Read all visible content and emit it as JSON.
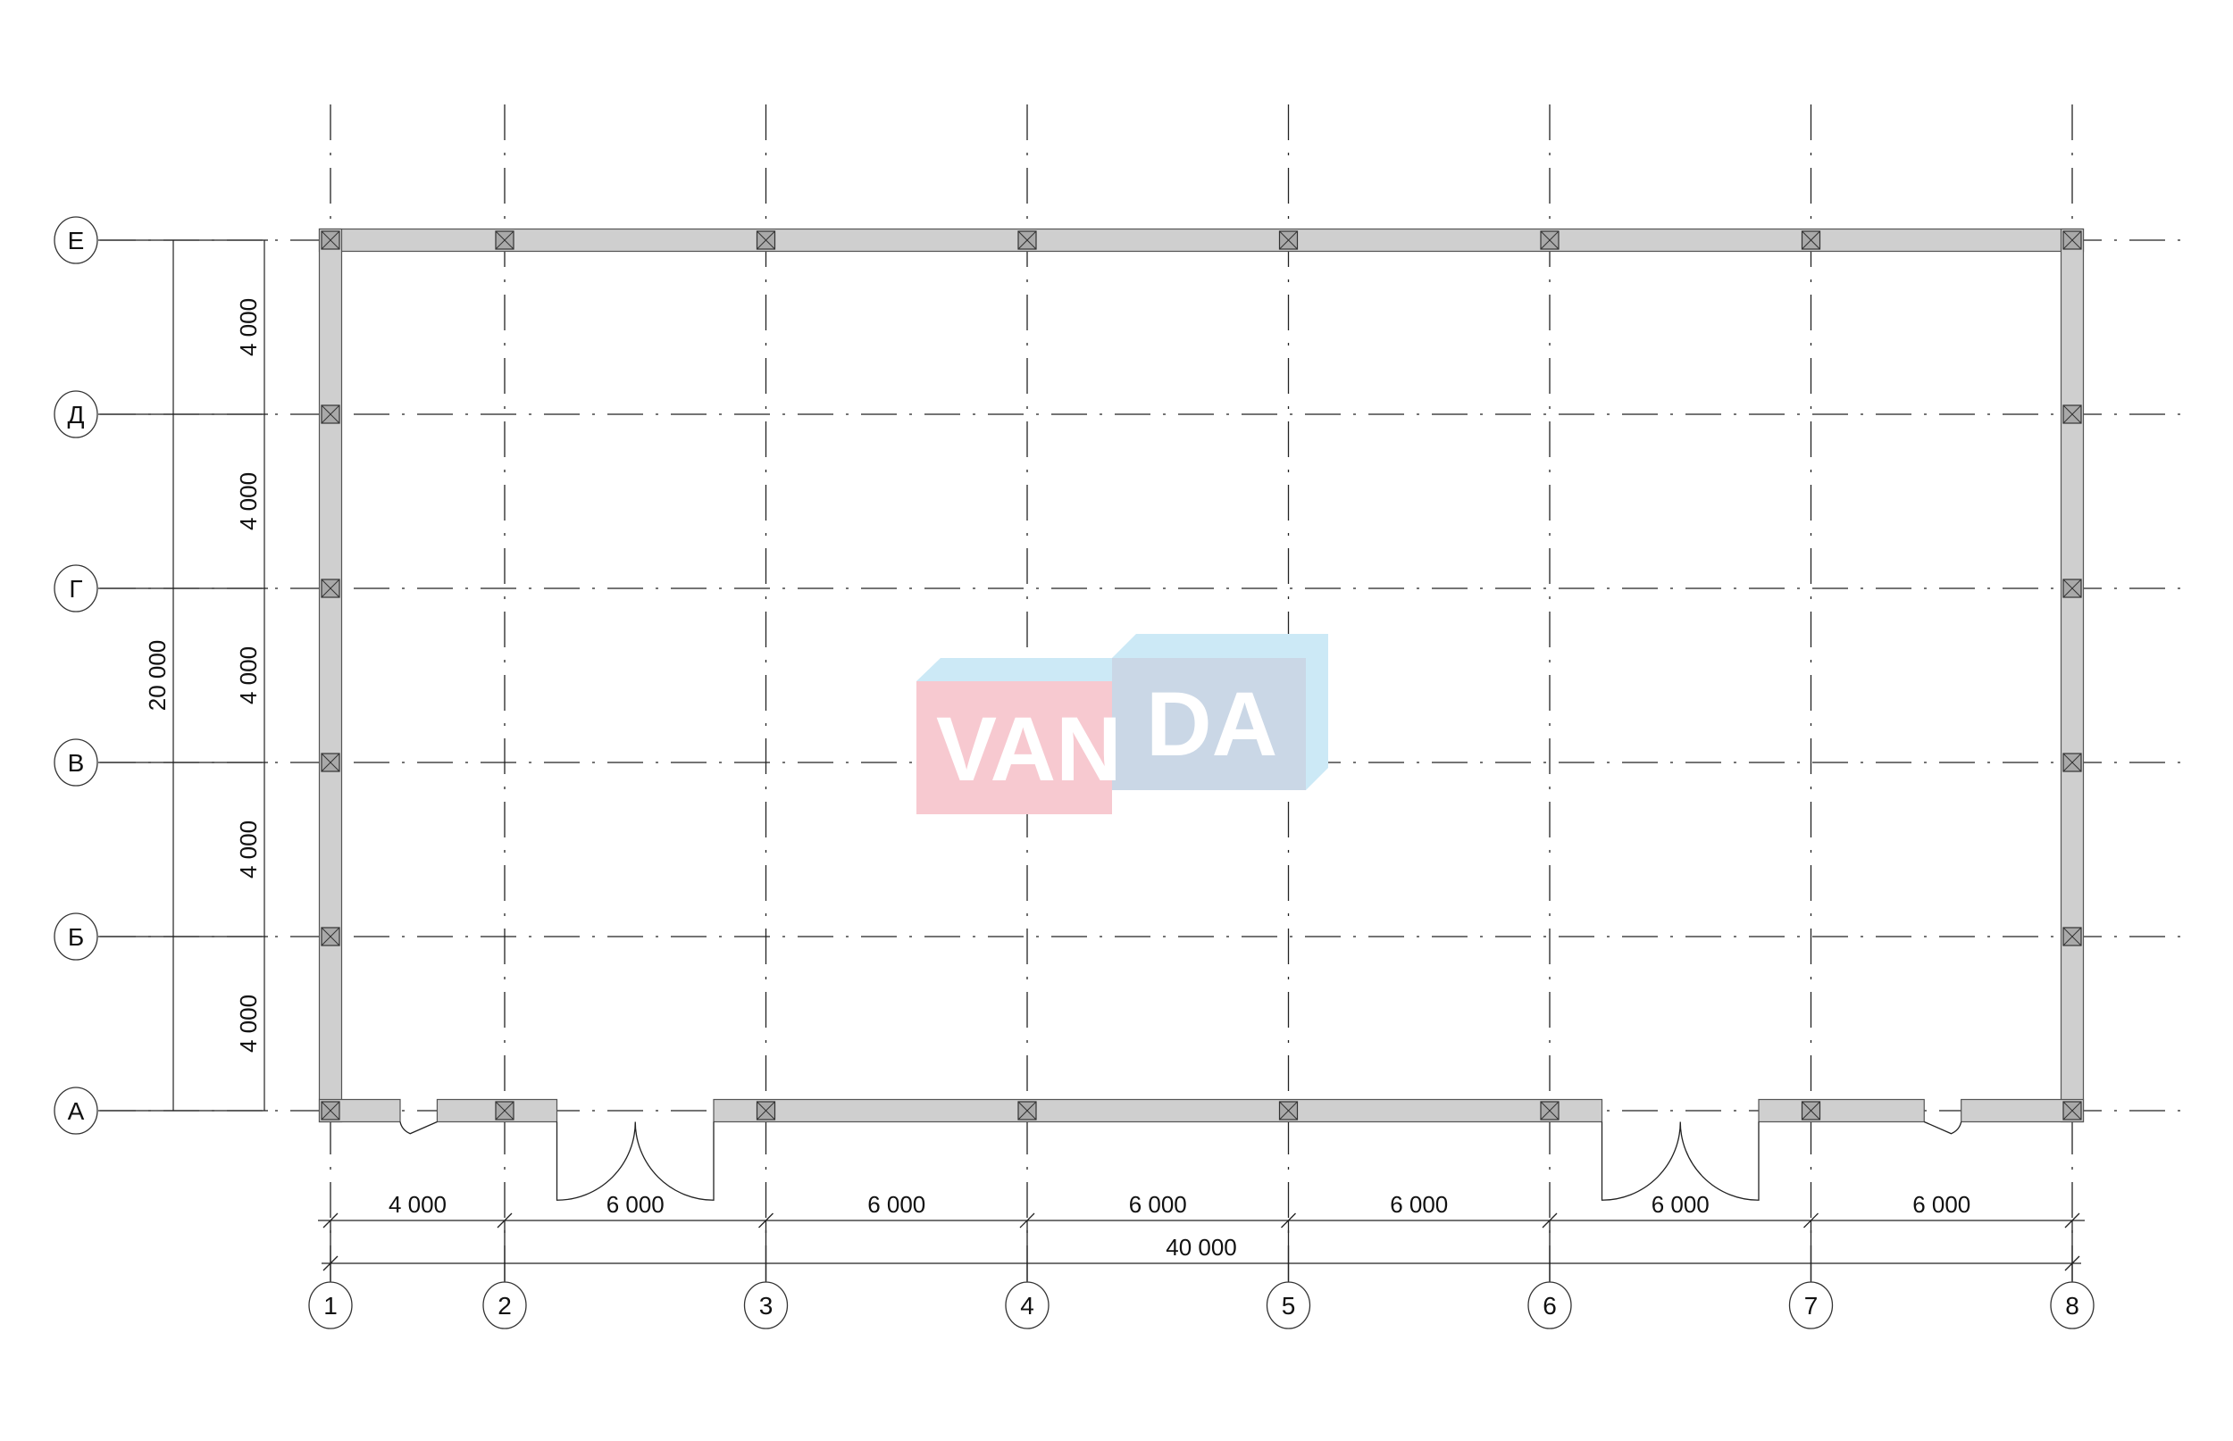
{
  "plan": {
    "columns": {
      "labels": [
        "1",
        "2",
        "3",
        "4",
        "5",
        "6",
        "7",
        "8"
      ],
      "spacings_mm": [
        4000,
        6000,
        6000,
        6000,
        6000,
        6000,
        6000
      ],
      "spacing_labels": [
        "4 000",
        "6 000",
        "6 000",
        "6 000",
        "6 000",
        "6 000",
        "6 000"
      ],
      "overall_label": "40 000"
    },
    "rows": {
      "labels": [
        "А",
        "Б",
        "В",
        "Г",
        "Д",
        "Е"
      ],
      "spacings_mm": [
        4000,
        4000,
        4000,
        4000,
        4000
      ],
      "spacing_labels": [
        "4 000",
        "4 000",
        "4 000",
        "4 000",
        "4 000"
      ],
      "overall_label": "20 000"
    },
    "openings": [
      {
        "type": "single-door",
        "from_mm": 1600,
        "to_mm": 2450
      },
      {
        "type": "double-door",
        "from_mm": 5200,
        "to_mm": 8800
      },
      {
        "type": "double-door",
        "from_mm": 29200,
        "to_mm": 32800
      },
      {
        "type": "single-door-mirrored",
        "from_mm": 36600,
        "to_mm": 37450
      }
    ],
    "colors": {
      "wall": "#cfcfcf",
      "line": "#222222",
      "column": "#a9a9a9"
    }
  },
  "watermark": {
    "text_left": "VAN",
    "text_right": "DA",
    "colors": {
      "pink": "#f7c9d0",
      "light_blue": "#cce9f6",
      "grey_blue": "#cad7e6"
    }
  }
}
